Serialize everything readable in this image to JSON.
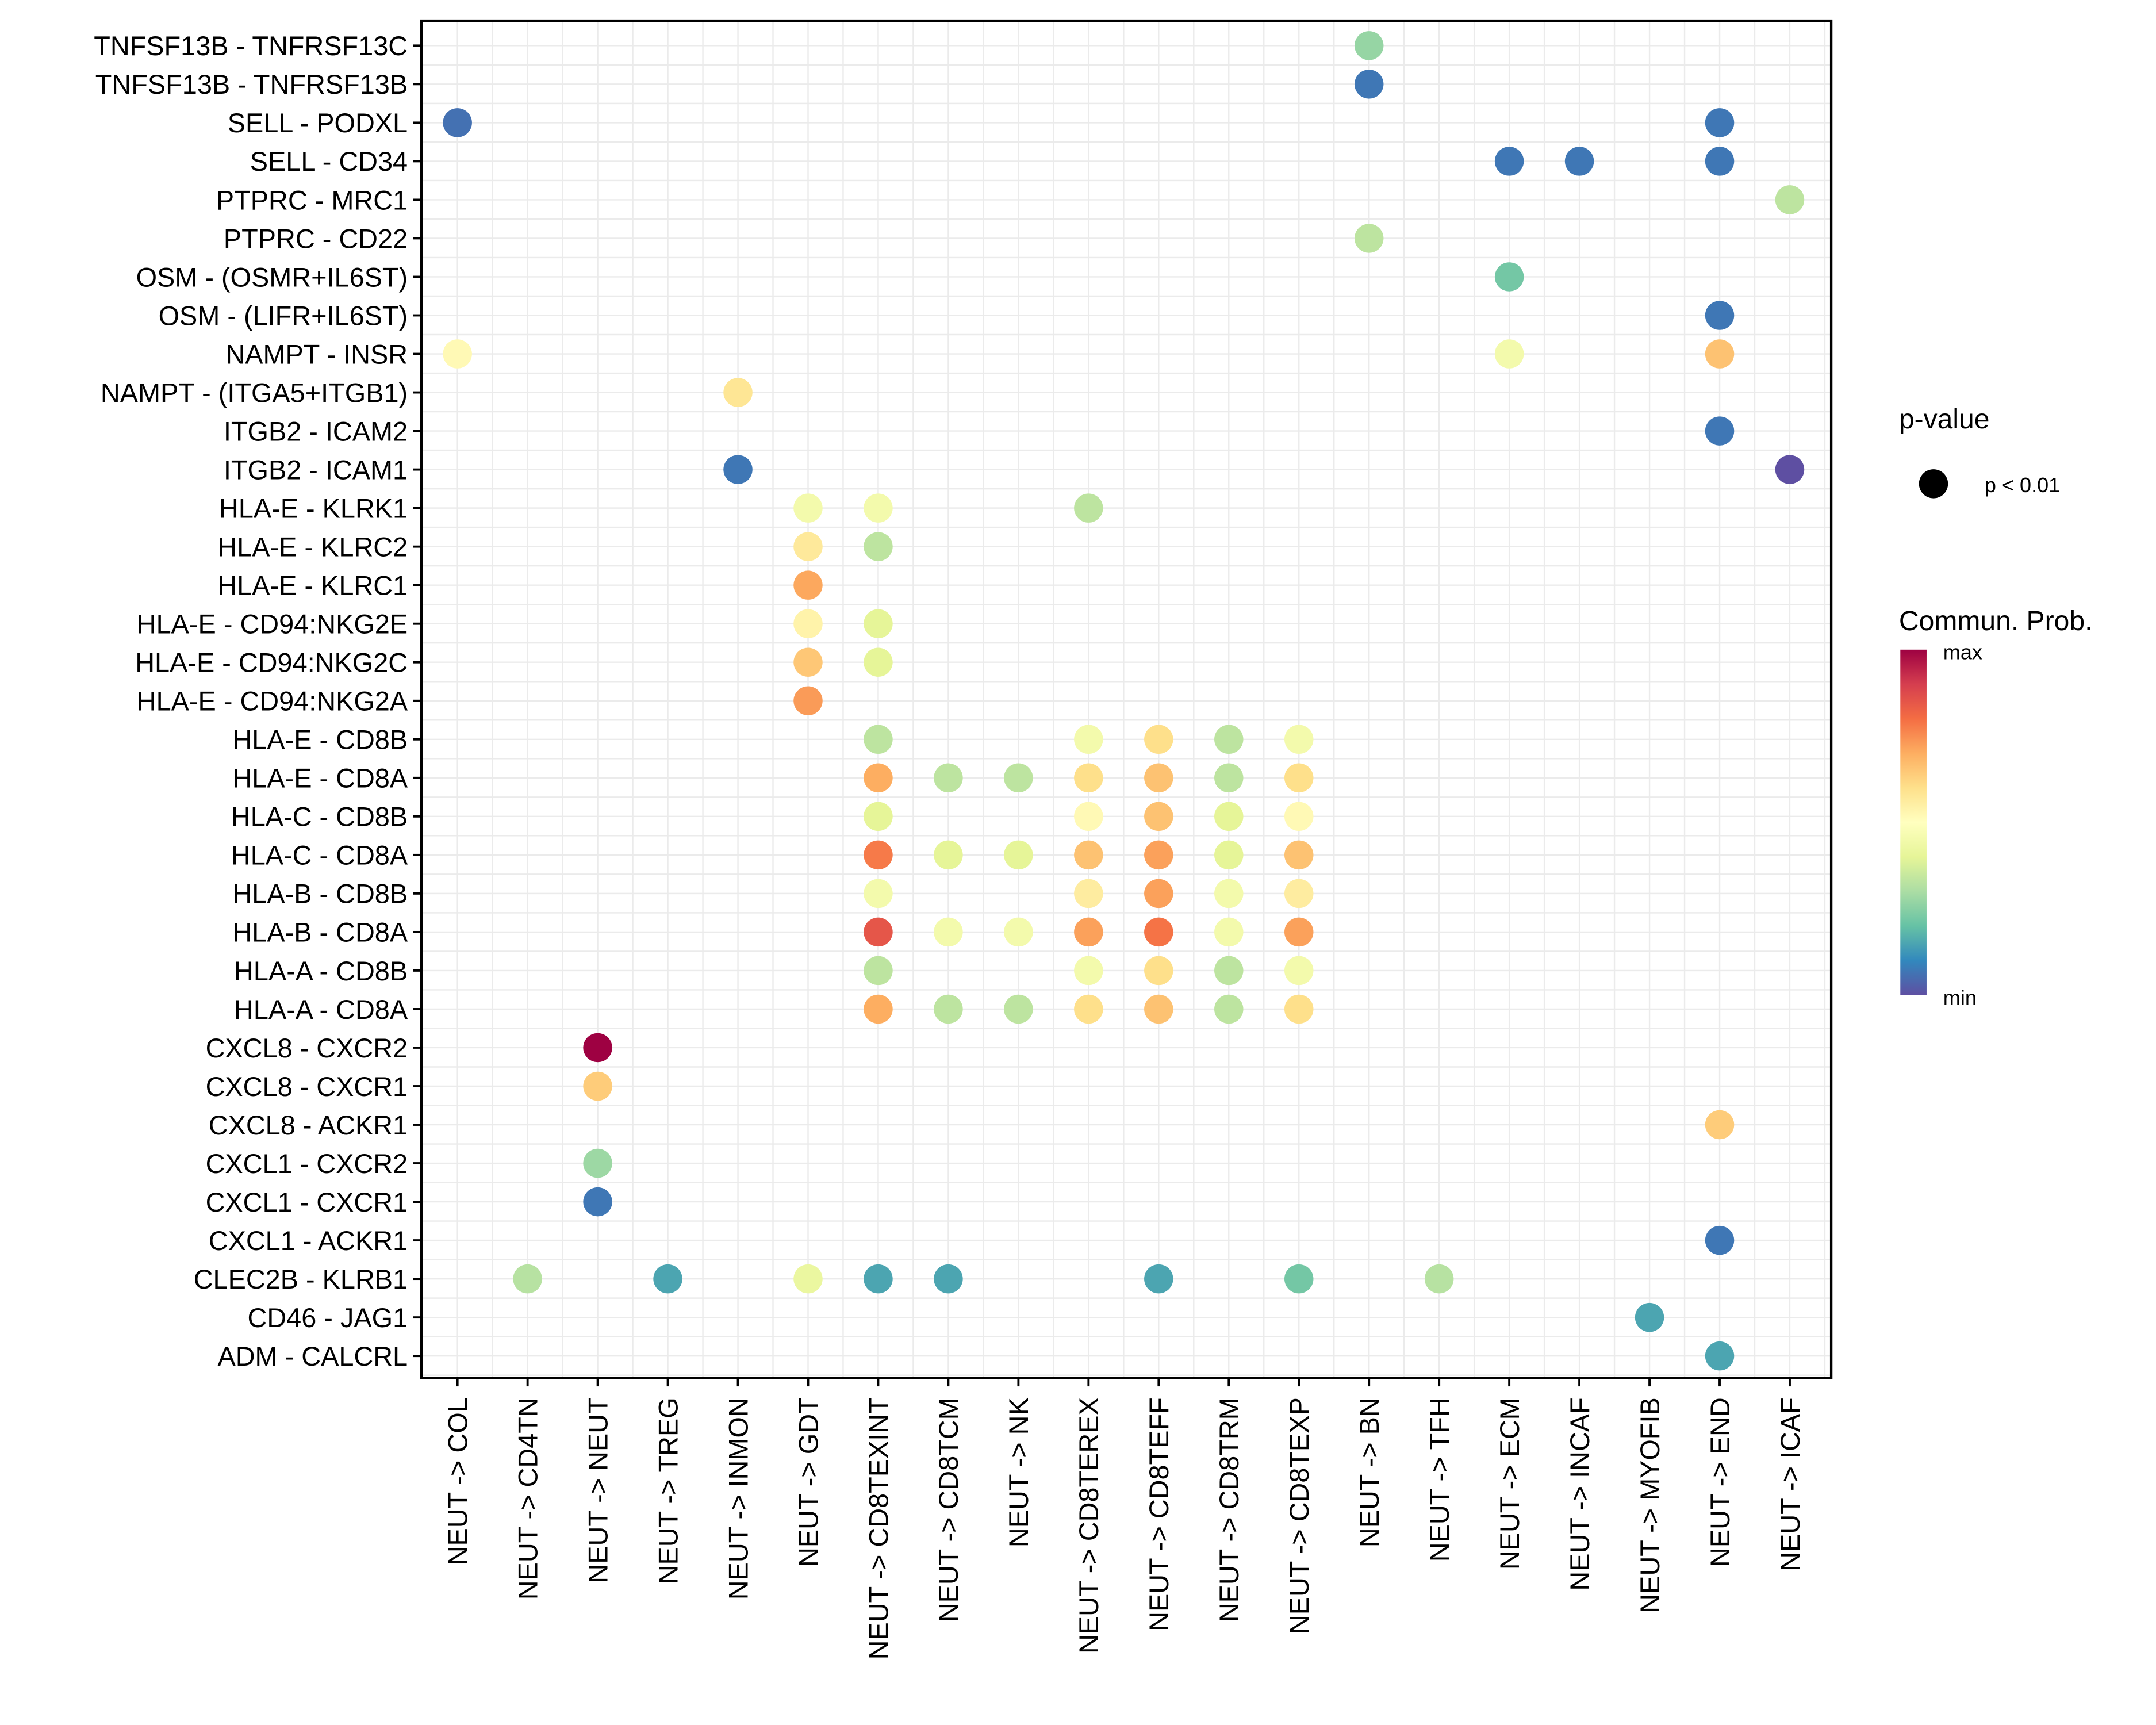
{
  "chart_data": {
    "type": "scatter",
    "subtype": "dot-matrix",
    "title": "",
    "xlabel": "",
    "ylabel": "",
    "grid": true,
    "legend_position": "right",
    "colormap": "Spectral",
    "x_categories": [
      "NEUT -> COL",
      "NEUT -> CD4TN",
      "NEUT -> NEUT",
      "NEUT -> TREG",
      "NEUT -> INMON",
      "NEUT -> GDT",
      "NEUT -> CD8TEXINT",
      "NEUT -> CD8TCM",
      "NEUT -> NK",
      "NEUT -> CD8TEREX",
      "NEUT -> CD8TEFF",
      "NEUT -> CD8TRM",
      "NEUT -> CD8TEXP",
      "NEUT -> BN",
      "NEUT -> TFH",
      "NEUT -> ECM",
      "NEUT -> INCAF",
      "NEUT -> MYOFIB",
      "NEUT -> END",
      "NEUT -> ICAF"
    ],
    "y_categories": [
      "TNFSF13B - TNFRSF13C",
      "TNFSF13B - TNFRSF13B",
      "SELL - PODXL",
      "SELL - CD34",
      "PTPRC - MRC1",
      "PTPRC - CD22",
      "OSM - (OSMR+IL6ST)",
      "OSM - (LIFR+IL6ST)",
      "NAMPT - INSR",
      "NAMPT - (ITGA5+ITGB1)",
      "ITGB2 - ICAM2",
      "ITGB2 - ICAM1",
      "HLA-E - KLRK1",
      "HLA-E - KLRC2",
      "HLA-E - KLRC1",
      "HLA-E - CD94:NKG2E",
      "HLA-E - CD94:NKG2C",
      "HLA-E - CD94:NKG2A",
      "HLA-E - CD8B",
      "HLA-E - CD8A",
      "HLA-C - CD8B",
      "HLA-C - CD8A",
      "HLA-B - CD8B",
      "HLA-B - CD8A",
      "HLA-A - CD8B",
      "HLA-A - CD8A",
      "CXCL8 - CXCR2",
      "CXCL8 - CXCR1",
      "CXCL8 - ACKR1",
      "CXCL1 - CXCR2",
      "CXCL1 - CXCR1",
      "CXCL1 - ACKR1",
      "CLEC2B - KLRB1",
      "CD46 - JAG1",
      "ADM - CALCRL"
    ],
    "value_scale": "relative communication probability (0 = min, 1 = max)",
    "points": [
      {
        "y": "TNFSF13B - TNFRSF13C",
        "x": "NEUT -> BN",
        "prob": 0.27
      },
      {
        "y": "TNFSF13B - TNFRSF13B",
        "x": "NEUT -> BN",
        "prob": 0.07
      },
      {
        "y": "SELL - PODXL",
        "x": "NEUT -> COL",
        "prob": 0.06
      },
      {
        "y": "SELL - PODXL",
        "x": "NEUT -> END",
        "prob": 0.07
      },
      {
        "y": "SELL - CD34",
        "x": "NEUT -> ECM",
        "prob": 0.07
      },
      {
        "y": "SELL - CD34",
        "x": "NEUT -> INCAF",
        "prob": 0.07
      },
      {
        "y": "SELL - CD34",
        "x": "NEUT -> END",
        "prob": 0.07
      },
      {
        "y": "PTPRC - MRC1",
        "x": "NEUT -> ICAF",
        "prob": 0.33
      },
      {
        "y": "PTPRC - CD22",
        "x": "NEUT -> BN",
        "prob": 0.33
      },
      {
        "y": "OSM - (OSMR+IL6ST)",
        "x": "NEUT -> ECM",
        "prob": 0.22
      },
      {
        "y": "OSM - (LIFR+IL6ST)",
        "x": "NEUT -> END",
        "prob": 0.07
      },
      {
        "y": "NAMPT - INSR",
        "x": "NEUT -> COL",
        "prob": 0.52
      },
      {
        "y": "NAMPT - INSR",
        "x": "NEUT -> ECM",
        "prob": 0.45
      },
      {
        "y": "NAMPT - INSR",
        "x": "NEUT -> END",
        "prob": 0.66
      },
      {
        "y": "NAMPT - (ITGA5+ITGB1)",
        "x": "NEUT -> INMON",
        "prob": 0.58
      },
      {
        "y": "ITGB2 - ICAM2",
        "x": "NEUT -> END",
        "prob": 0.07
      },
      {
        "y": "ITGB2 - ICAM1",
        "x": "NEUT -> INMON",
        "prob": 0.07
      },
      {
        "y": "ITGB2 - ICAM1",
        "x": "NEUT -> ICAF",
        "prob": 0.0
      },
      {
        "y": "HLA-E - KLRK1",
        "x": "NEUT -> GDT",
        "prob": 0.45
      },
      {
        "y": "HLA-E - KLRK1",
        "x": "NEUT -> CD8TEXINT",
        "prob": 0.45
      },
      {
        "y": "HLA-E - KLRK1",
        "x": "NEUT -> CD8TEREX",
        "prob": 0.33
      },
      {
        "y": "HLA-E - KLRC2",
        "x": "NEUT -> GDT",
        "prob": 0.57
      },
      {
        "y": "HLA-E - KLRC2",
        "x": "NEUT -> CD8TEXINT",
        "prob": 0.33
      },
      {
        "y": "HLA-E - KLRC1",
        "x": "NEUT -> GDT",
        "prob": 0.71
      },
      {
        "y": "HLA-E - CD94:NKG2E",
        "x": "NEUT -> GDT",
        "prob": 0.54
      },
      {
        "y": "HLA-E - CD94:NKG2E",
        "x": "NEUT -> CD8TEXINT",
        "prob": 0.4
      },
      {
        "y": "HLA-E - CD94:NKG2C",
        "x": "NEUT -> GDT",
        "prob": 0.65
      },
      {
        "y": "HLA-E - CD94:NKG2C",
        "x": "NEUT -> CD8TEXINT",
        "prob": 0.4
      },
      {
        "y": "HLA-E - CD94:NKG2A",
        "x": "NEUT -> GDT",
        "prob": 0.73
      },
      {
        "y": "HLA-E - CD8B",
        "x": "NEUT -> CD8TEXINT",
        "prob": 0.33
      },
      {
        "y": "HLA-E - CD8B",
        "x": "NEUT -> CD8TEREX",
        "prob": 0.45
      },
      {
        "y": "HLA-E - CD8B",
        "x": "NEUT -> CD8TEFF",
        "prob": 0.6
      },
      {
        "y": "HLA-E - CD8B",
        "x": "NEUT -> CD8TRM",
        "prob": 0.33
      },
      {
        "y": "HLA-E - CD8B",
        "x": "NEUT -> CD8TEXP",
        "prob": 0.45
      },
      {
        "y": "HLA-E - CD8A",
        "x": "NEUT -> CD8TEXINT",
        "prob": 0.7
      },
      {
        "y": "HLA-E - CD8A",
        "x": "NEUT -> CD8TCM",
        "prob": 0.33
      },
      {
        "y": "HLA-E - CD8A",
        "x": "NEUT -> NK",
        "prob": 0.33
      },
      {
        "y": "HLA-E - CD8A",
        "x": "NEUT -> CD8TEREX",
        "prob": 0.6
      },
      {
        "y": "HLA-E - CD8A",
        "x": "NEUT -> CD8TEFF",
        "prob": 0.66
      },
      {
        "y": "HLA-E - CD8A",
        "x": "NEUT -> CD8TRM",
        "prob": 0.33
      },
      {
        "y": "HLA-E - CD8A",
        "x": "NEUT -> CD8TEXP",
        "prob": 0.6
      },
      {
        "y": "HLA-C - CD8B",
        "x": "NEUT -> CD8TEXINT",
        "prob": 0.4
      },
      {
        "y": "HLA-C - CD8B",
        "x": "NEUT -> CD8TEREX",
        "prob": 0.52
      },
      {
        "y": "HLA-C - CD8B",
        "x": "NEUT -> CD8TEFF",
        "prob": 0.66
      },
      {
        "y": "HLA-C - CD8B",
        "x": "NEUT -> CD8TRM",
        "prob": 0.4
      },
      {
        "y": "HLA-C - CD8B",
        "x": "NEUT -> CD8TEXP",
        "prob": 0.52
      },
      {
        "y": "HLA-C - CD8A",
        "x": "NEUT -> CD8TEXINT",
        "prob": 0.78
      },
      {
        "y": "HLA-C - CD8A",
        "x": "NEUT -> CD8TCM",
        "prob": 0.4
      },
      {
        "y": "HLA-C - CD8A",
        "x": "NEUT -> NK",
        "prob": 0.4
      },
      {
        "y": "HLA-C - CD8A",
        "x": "NEUT -> CD8TEREX",
        "prob": 0.66
      },
      {
        "y": "HLA-C - CD8A",
        "x": "NEUT -> CD8TEFF",
        "prob": 0.72
      },
      {
        "y": "HLA-C - CD8A",
        "x": "NEUT -> CD8TRM",
        "prob": 0.4
      },
      {
        "y": "HLA-C - CD8A",
        "x": "NEUT -> CD8TEXP",
        "prob": 0.66
      },
      {
        "y": "HLA-B - CD8B",
        "x": "NEUT -> CD8TEXINT",
        "prob": 0.45
      },
      {
        "y": "HLA-B - CD8B",
        "x": "NEUT -> CD8TEREX",
        "prob": 0.56
      },
      {
        "y": "HLA-B - CD8B",
        "x": "NEUT -> CD8TEFF",
        "prob": 0.72
      },
      {
        "y": "HLA-B - CD8B",
        "x": "NEUT -> CD8TRM",
        "prob": 0.45
      },
      {
        "y": "HLA-B - CD8B",
        "x": "NEUT -> CD8TEXP",
        "prob": 0.56
      },
      {
        "y": "HLA-B - CD8A",
        "x": "NEUT -> CD8TEXINT",
        "prob": 0.85
      },
      {
        "y": "HLA-B - CD8A",
        "x": "NEUT -> CD8TCM",
        "prob": 0.45
      },
      {
        "y": "HLA-B - CD8A",
        "x": "NEUT -> NK",
        "prob": 0.45
      },
      {
        "y": "HLA-B - CD8A",
        "x": "NEUT -> CD8TEREX",
        "prob": 0.72
      },
      {
        "y": "HLA-B - CD8A",
        "x": "NEUT -> CD8TEFF",
        "prob": 0.79
      },
      {
        "y": "HLA-B - CD8A",
        "x": "NEUT -> CD8TRM",
        "prob": 0.45
      },
      {
        "y": "HLA-B - CD8A",
        "x": "NEUT -> CD8TEXP",
        "prob": 0.72
      },
      {
        "y": "HLA-A - CD8B",
        "x": "NEUT -> CD8TEXINT",
        "prob": 0.33
      },
      {
        "y": "HLA-A - CD8B",
        "x": "NEUT -> CD8TEREX",
        "prob": 0.45
      },
      {
        "y": "HLA-A - CD8B",
        "x": "NEUT -> CD8TEFF",
        "prob": 0.6
      },
      {
        "y": "HLA-A - CD8B",
        "x": "NEUT -> CD8TRM",
        "prob": 0.33
      },
      {
        "y": "HLA-A - CD8B",
        "x": "NEUT -> CD8TEXP",
        "prob": 0.45
      },
      {
        "y": "HLA-A - CD8A",
        "x": "NEUT -> CD8TEXINT",
        "prob": 0.7
      },
      {
        "y": "HLA-A - CD8A",
        "x": "NEUT -> CD8TCM",
        "prob": 0.33
      },
      {
        "y": "HLA-A - CD8A",
        "x": "NEUT -> NK",
        "prob": 0.33
      },
      {
        "y": "HLA-A - CD8A",
        "x": "NEUT -> CD8TEREX",
        "prob": 0.6
      },
      {
        "y": "HLA-A - CD8A",
        "x": "NEUT -> CD8TEFF",
        "prob": 0.66
      },
      {
        "y": "HLA-A - CD8A",
        "x": "NEUT -> CD8TRM",
        "prob": 0.33
      },
      {
        "y": "HLA-A - CD8A",
        "x": "NEUT -> CD8TEXP",
        "prob": 0.6
      },
      {
        "y": "CXCL8 - CXCR2",
        "x": "NEUT -> NEUT",
        "prob": 1.0
      },
      {
        "y": "CXCL8 - CXCR1",
        "x": "NEUT -> NEUT",
        "prob": 0.64
      },
      {
        "y": "CXCL8 - ACKR1",
        "x": "NEUT -> END",
        "prob": 0.64
      },
      {
        "y": "CXCL1 - CXCR2",
        "x": "NEUT -> NEUT",
        "prob": 0.28
      },
      {
        "y": "CXCL1 - CXCR1",
        "x": "NEUT -> NEUT",
        "prob": 0.07
      },
      {
        "y": "CXCL1 - ACKR1",
        "x": "NEUT -> END",
        "prob": 0.07
      },
      {
        "y": "CLEC2B - KLRB1",
        "x": "NEUT -> CD4TN",
        "prob": 0.32
      },
      {
        "y": "CLEC2B - KLRB1",
        "x": "NEUT -> TREG",
        "prob": 0.15
      },
      {
        "y": "CLEC2B - KLRB1",
        "x": "NEUT -> GDT",
        "prob": 0.42
      },
      {
        "y": "CLEC2B - KLRB1",
        "x": "NEUT -> CD8TEXINT",
        "prob": 0.15
      },
      {
        "y": "CLEC2B - KLRB1",
        "x": "NEUT -> CD8TCM",
        "prob": 0.15
      },
      {
        "y": "CLEC2B - KLRB1",
        "x": "NEUT -> CD8TEFF",
        "prob": 0.15
      },
      {
        "y": "CLEC2B - KLRB1",
        "x": "NEUT -> CD8TEXP",
        "prob": 0.22
      },
      {
        "y": "CLEC2B - KLRB1",
        "x": "NEUT -> TFH",
        "prob": 0.32
      },
      {
        "y": "CD46 - JAG1",
        "x": "NEUT -> MYOFIB",
        "prob": 0.15
      },
      {
        "y": "ADM - CALCRL",
        "x": "NEUT -> END",
        "prob": 0.15
      }
    ],
    "legend": {
      "size_title": "p-value",
      "size_entries": [
        "p < 0.01"
      ],
      "color_title": "Commun. Prob.",
      "color_max_label": "max",
      "color_min_label": "min"
    },
    "colors": {
      "spectral_stops": [
        "#5e4fa2",
        "#3288bd",
        "#66c2a5",
        "#abdda4",
        "#e6f598",
        "#ffffbf",
        "#fee08b",
        "#fdae61",
        "#f46d43",
        "#d53e4f",
        "#9e0142"
      ],
      "legend_dot": "#000000"
    }
  }
}
